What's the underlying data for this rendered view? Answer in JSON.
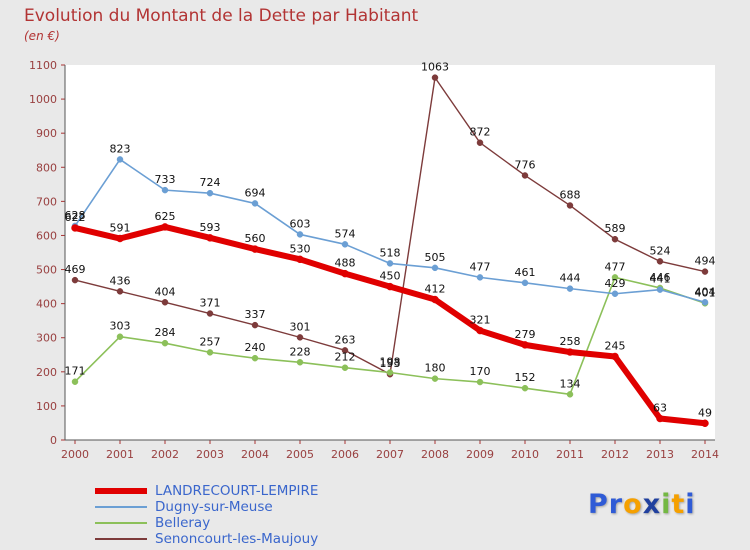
{
  "title": "Evolution du Montant de la Dette par Habitant",
  "subtitle": "(en €)",
  "chart_data": {
    "type": "line",
    "x": [
      2000,
      2001,
      2002,
      2003,
      2004,
      2005,
      2006,
      2007,
      2008,
      2009,
      2010,
      2011,
      2012,
      2013,
      2014
    ],
    "series": [
      {
        "name": "LANDRECOURT-LEMPIRE",
        "color": "#e00000",
        "line_width": 6,
        "values": [
          622,
          591,
          625,
          593,
          560,
          530,
          488,
          450,
          412,
          321,
          279,
          258,
          245,
          63,
          49
        ]
      },
      {
        "name": "Dugny-sur-Meuse",
        "color": "#6b9fd4",
        "line_width": 1.6,
        "values": [
          628,
          823,
          733,
          724,
          694,
          603,
          574,
          518,
          505,
          477,
          461,
          444,
          429,
          441,
          404
        ]
      },
      {
        "name": "Belleray",
        "color": "#8cc05a",
        "line_width": 1.6,
        "values": [
          171,
          303,
          284,
          257,
          240,
          228,
          212,
          198,
          180,
          170,
          152,
          134,
          477,
          446,
          401
        ]
      },
      {
        "name": "Senoncourt-les-Maujouy",
        "color": "#7d3b3b",
        "line_width": 1.4,
        "values": [
          469,
          436,
          404,
          371,
          337,
          301,
          263,
          193,
          1063,
          872,
          776,
          688,
          589,
          524,
          494
        ]
      }
    ],
    "ylim": [
      0,
      1100
    ],
    "ytick_step": 100,
    "grid": false,
    "legend_position": "bottom-left",
    "axis_label_color": "#994040",
    "point_label_color": "#111111"
  },
  "logo": {
    "letters": [
      {
        "ch": "P",
        "color": "#2f5bd6"
      },
      {
        "ch": "r",
        "color": "#2f5bd6"
      },
      {
        "ch": "o",
        "color": "#f5a000"
      },
      {
        "ch": "x",
        "color": "#20409e"
      },
      {
        "ch": "i",
        "color": "#74b843"
      },
      {
        "ch": "t",
        "color": "#f5a000"
      },
      {
        "ch": "i",
        "color": "#2f5bd6"
      }
    ]
  }
}
